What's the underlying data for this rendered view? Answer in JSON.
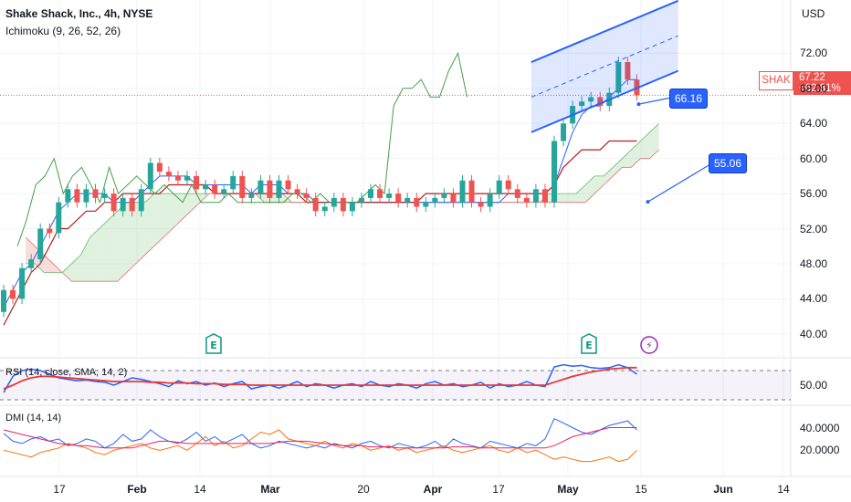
{
  "header": {
    "title": "Shake Shack, Inc., 4h, NYSE",
    "indicator": "Ichimoku (9, 26, 52, 26)"
  },
  "currency": "USD",
  "price_tag": {
    "symbol": "SHAK",
    "price": "67.22",
    "change": "+62.81%"
  },
  "annotations": {
    "upper_label": "66.16",
    "lower_label": "55.06"
  },
  "events": {
    "earnings_1": "E",
    "earnings_2": "E",
    "split": "⚡"
  },
  "panes": {
    "rsi_title": "RSI (14, close, SMA, 14, 2)",
    "dmi_title": "DMI (14, 14)"
  },
  "colors": {
    "up": "#26a69a",
    "down": "#ef5350",
    "blue": "#2962ff",
    "conversion": "#2962ff",
    "base": "#b71c1c",
    "lagging": "#43a047",
    "cloud_up": "#a5d6a7",
    "cloud_down": "#ef9a9a",
    "rsi": "#2962ff",
    "rsi_ma": "#e53935",
    "dmi_plus": "#2962ff",
    "dmi_minus": "#ff6d00",
    "adx": "#e91e63"
  },
  "chart_data": {
    "type": "candlestick",
    "y_axis": {
      "ticks": [
        "72.00",
        "68.00",
        "64.00",
        "60.00",
        "56.00",
        "52.00",
        "48.00",
        "44.00",
        "40.00"
      ],
      "range": [
        38,
        76
      ],
      "current_price": 67.22
    },
    "x_axis": {
      "ticks": [
        "17",
        "Feb",
        "14",
        "Mar",
        "20",
        "Apr",
        "17",
        "May",
        "15",
        "Jun",
        "14"
      ]
    },
    "candles": [
      [
        42.5,
        45.0
      ],
      [
        45.0,
        44.0
      ],
      [
        44.0,
        47.5
      ],
      [
        47.5,
        48.5
      ],
      [
        48.5,
        52.0
      ],
      [
        52.0,
        51.5
      ],
      [
        51.5,
        55.0
      ],
      [
        55.0,
        56.5
      ],
      [
        56.5,
        55.0
      ],
      [
        55.0,
        56.5
      ],
      [
        56.5,
        55.5
      ],
      [
        55.5,
        56.0
      ],
      [
        56.0,
        54.0
      ],
      [
        54.0,
        55.5
      ],
      [
        55.5,
        54.0
      ],
      [
        54.0,
        56.5
      ],
      [
        56.5,
        59.5
      ],
      [
        59.5,
        58.5
      ],
      [
        58.5,
        58.0
      ],
      [
        58.0,
        57.5
      ],
      [
        57.5,
        58.0
      ],
      [
        58.0,
        56.5
      ],
      [
        56.5,
        57.0
      ],
      [
        57.0,
        56.0
      ],
      [
        56.0,
        56.5
      ],
      [
        56.5,
        58.0
      ],
      [
        58.0,
        55.5
      ],
      [
        55.5,
        56.0
      ],
      [
        56.0,
        57.5
      ],
      [
        57.5,
        55.5
      ],
      [
        55.5,
        57.5
      ],
      [
        57.5,
        56.5
      ],
      [
        56.5,
        56.0
      ],
      [
        56.0,
        55.5
      ],
      [
        55.5,
        54.0
      ],
      [
        54.0,
        54.5
      ],
      [
        54.5,
        55.5
      ],
      [
        55.5,
        54.0
      ],
      [
        54.0,
        55.0
      ],
      [
        55.0,
        55.5
      ],
      [
        55.5,
        56.5
      ],
      [
        56.5,
        55.5
      ],
      [
        55.5,
        56.0
      ],
      [
        56.0,
        55.0
      ],
      [
        55.0,
        55.5
      ],
      [
        55.5,
        54.5
      ],
      [
        54.5,
        55.0
      ],
      [
        55.0,
        55.5
      ],
      [
        55.5,
        56.0
      ],
      [
        56.0,
        55.0
      ],
      [
        55.0,
        57.5
      ],
      [
        57.5,
        55.0
      ],
      [
        55.0,
        54.5
      ],
      [
        54.5,
        56.0
      ],
      [
        56.0,
        57.5
      ],
      [
        57.5,
        56.5
      ],
      [
        56.5,
        55.5
      ],
      [
        55.5,
        55.0
      ],
      [
        55.0,
        56.5
      ],
      [
        56.5,
        55.0
      ],
      [
        55.0,
        62.0
      ],
      [
        62.0,
        64.0
      ],
      [
        64.0,
        66.0
      ],
      [
        66.0,
        66.5
      ],
      [
        66.5,
        67.0
      ],
      [
        67.0,
        66.0
      ],
      [
        66.0,
        67.5
      ],
      [
        67.5,
        71.0
      ],
      [
        71.0,
        69.0
      ],
      [
        69.0,
        67.22
      ]
    ],
    "ichimoku": {
      "conversion": [
        43,
        45,
        47,
        48,
        50,
        52,
        54,
        55,
        56,
        56,
        56,
        56,
        55,
        55,
        55,
        56,
        57,
        58,
        58,
        58,
        58,
        57,
        57,
        57,
        57,
        57,
        57,
        56,
        57,
        57,
        57,
        56,
        56,
        56,
        55,
        55,
        55,
        55,
        55,
        55,
        55,
        55,
        55,
        55,
        55,
        55,
        55,
        55,
        55,
        55,
        55,
        55,
        55,
        55,
        55,
        56,
        56,
        56,
        56,
        56,
        57,
        60,
        63,
        65,
        66,
        66,
        67,
        68,
        69,
        69
      ],
      "base": [
        41,
        43,
        45,
        47,
        48,
        50,
        52,
        52,
        53,
        54,
        54,
        55,
        55,
        56,
        56,
        56,
        56,
        56,
        57,
        57,
        57,
        57,
        57,
        56,
        56,
        56,
        56,
        56,
        56,
        56,
        56,
        56,
        56,
        55,
        55,
        55,
        55,
        55,
        55,
        55,
        55,
        55,
        55,
        55,
        55,
        55,
        56,
        56,
        56,
        56,
        56,
        56,
        56,
        56,
        56,
        56,
        56,
        56,
        56,
        56,
        57,
        59,
        60,
        61,
        61,
        61,
        62,
        62,
        62,
        62
      ],
      "lagging": [
        50,
        53,
        57,
        58,
        60,
        56,
        58,
        59,
        57,
        55,
        59,
        56,
        57,
        58,
        57,
        56,
        57,
        56,
        55,
        57,
        55,
        55,
        55,
        56,
        55,
        55,
        55,
        55,
        55,
        55,
        56,
        56,
        55,
        56,
        55,
        55,
        55,
        55,
        56,
        57,
        56,
        66,
        68,
        68,
        69,
        67,
        67,
        70,
        72,
        67
      ],
      "span_a": [
        48,
        48,
        47,
        47,
        47,
        48,
        49,
        51,
        52,
        53,
        54,
        55,
        55,
        55,
        56,
        56,
        56,
        56,
        56,
        56,
        56,
        56,
        56,
        56,
        56,
        56,
        56,
        56,
        56,
        55,
        55,
        55,
        55,
        55,
        55,
        55,
        55,
        55,
        55,
        55,
        55,
        55,
        55,
        55,
        55,
        55,
        55,
        55,
        55,
        55,
        55,
        55,
        55,
        55,
        55,
        55,
        55,
        56,
        56,
        56,
        56,
        57,
        58,
        58,
        59,
        60,
        61,
        62,
        63,
        64
      ],
      "span_b": [
        51,
        50,
        49,
        48,
        47,
        46,
        46,
        46,
        46,
        46,
        46,
        47,
        48,
        49,
        50,
        51,
        52,
        53,
        54,
        55,
        56,
        56,
        56,
        56,
        56,
        56,
        55,
        55,
        55,
        55,
        55,
        55,
        55,
        55,
        55,
        55,
        55,
        55,
        55,
        55,
        55,
        55,
        55,
        55,
        55,
        55,
        55,
        55,
        55,
        55,
        55,
        55,
        55,
        55,
        55,
        55,
        55,
        55,
        55,
        55,
        55,
        55,
        56,
        57,
        58,
        59,
        59,
        60,
        60,
        61
      ]
    },
    "channel": {
      "upper": [
        [
          57.5,
          71.0
        ],
        [
          73.5,
          78.0
        ]
      ],
      "lower": [
        [
          57.5,
          63.0
        ],
        [
          73.5,
          70.0
        ]
      ],
      "mid": [
        [
          57.5,
          67.0
        ],
        [
          73.5,
          74.0
        ]
      ]
    },
    "rsi": {
      "range": [
        0,
        100
      ],
      "ticks": [
        "50.00"
      ],
      "rsi": [
        40,
        62,
        70,
        72,
        70,
        65,
        60,
        58,
        56,
        57,
        55,
        54,
        50,
        55,
        60,
        58,
        55,
        52,
        48,
        56,
        52,
        55,
        50,
        53,
        48,
        52,
        55,
        45,
        48,
        50,
        46,
        50,
        55,
        48,
        52,
        50,
        46,
        50,
        52,
        48,
        55,
        50,
        48,
        52,
        50,
        46,
        52,
        55,
        50,
        52,
        48,
        50,
        54,
        46,
        52,
        48,
        50,
        55,
        50,
        48,
        75,
        78,
        76,
        77,
        74,
        73,
        74,
        78,
        74,
        65
      ],
      "ma": [
        45,
        50,
        56,
        60,
        62,
        62,
        61,
        60,
        59,
        58,
        57,
        56,
        55,
        55,
        55,
        55,
        54,
        54,
        53,
        53,
        53,
        52,
        52,
        52,
        51,
        51,
        51,
        50,
        50,
        50,
        50,
        50,
        50,
        50,
        50,
        50,
        50,
        50,
        50,
        50,
        50,
        50,
        50,
        50,
        50,
        50,
        50,
        50,
        50,
        50,
        50,
        50,
        50,
        50,
        50,
        50,
        50,
        50,
        50,
        50,
        54,
        58,
        62,
        65,
        68,
        70,
        72,
        73,
        74,
        74
      ]
    },
    "dmi": {
      "ticks": [
        "40.0000",
        "20.0000"
      ],
      "range": [
        0,
        55
      ],
      "plus_di": [
        35,
        28,
        26,
        30,
        32,
        28,
        30,
        24,
        26,
        30,
        28,
        22,
        26,
        34,
        28,
        30,
        38,
        32,
        28,
        26,
        30,
        36,
        28,
        32,
        26,
        30,
        34,
        26,
        22,
        24,
        28,
        26,
        24,
        22,
        24,
        22,
        26,
        24,
        22,
        26,
        28,
        24,
        22,
        26,
        24,
        22,
        24,
        28,
        22,
        30,
        26,
        24,
        22,
        28,
        26,
        24,
        22,
        26,
        24,
        30,
        48,
        44,
        40,
        36,
        34,
        38,
        42,
        44,
        46,
        38
      ],
      "minus_di": [
        20,
        18,
        16,
        14,
        18,
        20,
        22,
        26,
        24,
        22,
        18,
        16,
        20,
        22,
        24,
        26,
        22,
        20,
        22,
        24,
        20,
        26,
        32,
        24,
        28,
        22,
        24,
        30,
        36,
        34,
        38,
        30,
        28,
        26,
        24,
        28,
        24,
        22,
        26,
        24,
        20,
        22,
        24,
        20,
        22,
        18,
        20,
        22,
        24,
        20,
        18,
        20,
        22,
        24,
        20,
        18,
        22,
        18,
        20,
        16,
        12,
        14,
        12,
        10,
        10,
        12,
        14,
        10,
        12,
        20
      ],
      "adx": [
        38,
        36,
        34,
        32,
        30,
        28,
        26,
        25,
        24,
        24,
        23,
        22,
        22,
        22,
        22,
        24,
        26,
        28,
        28,
        27,
        26,
        26,
        26,
        26,
        26,
        26,
        26,
        26,
        26,
        26,
        27,
        28,
        28,
        28,
        27,
        26,
        25,
        24,
        24,
        24,
        23,
        23,
        23,
        22,
        22,
        22,
        22,
        22,
        22,
        23,
        23,
        23,
        22,
        22,
        22,
        22,
        22,
        22,
        22,
        22,
        24,
        28,
        32,
        34,
        36,
        38,
        40,
        40,
        40,
        40
      ]
    }
  }
}
